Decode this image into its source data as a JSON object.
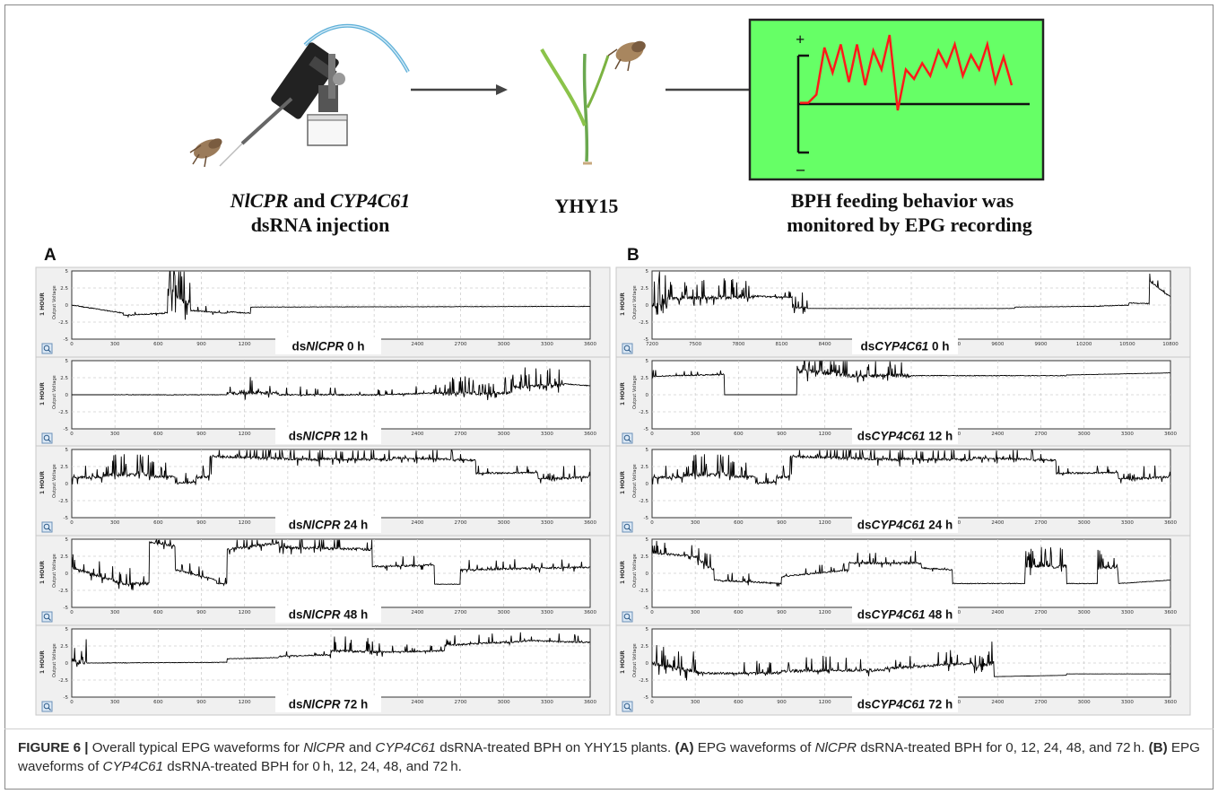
{
  "pipeline": {
    "step1_gene_1": "NlCPR",
    "step1_and": " and ",
    "step1_gene_2": "CYP4C61",
    "step1_line2": "dsRNA injection",
    "step2_label": "YHY15",
    "step3_line1": "BPH feeding behavior was",
    "step3_line2": "monitored by EPG recording",
    "monitor_plus": "+",
    "monitor_minus": "–",
    "monitor_bg": "#66ff66",
    "monitor_trace_color": "#ff1a1a",
    "monitor_trace": [
      0.02,
      0.02,
      0.15,
      0.9,
      0.5,
      0.95,
      0.35,
      0.95,
      0.3,
      0.85,
      0.55,
      1.1,
      -0.1,
      0.55,
      0.4,
      0.65,
      0.45,
      0.85,
      0.6,
      0.95,
      0.45,
      0.78,
      0.55,
      0.95,
      0.35,
      0.75,
      0.3
    ]
  },
  "panels": [
    {
      "letter": "A",
      "x_ticks": [
        "0",
        "300",
        "600",
        "900",
        "1200",
        "1500",
        "1800",
        "2100",
        "2400",
        "2700",
        "3000",
        "3300",
        "3600"
      ],
      "y_ticks": [
        "5",
        "2.5",
        "0",
        "-2.5",
        "-5"
      ],
      "side_label": "1 HOUR",
      "ylabel": "Output Voltage",
      "rows": [
        {
          "prefix": "ds",
          "gene": "NlCPR",
          "time": " 0 h",
          "seed": 11,
          "segments": [
            [
              0,
              0,
              -1.2,
              0.5
            ],
            [
              0.1,
              -1.5,
              -1.2,
              0.6
            ],
            [
              0.18,
              -1.1,
              -1.2,
              0.6
            ],
            [
              0.185,
              2.5,
              0,
              4.5
            ],
            [
              0.23,
              -0.8,
              -1.2,
              0.6
            ],
            [
              0.3,
              -1.0,
              -1.2,
              0.7
            ],
            [
              0.345,
              -0.3,
              -0.2,
              0.25
            ],
            [
              1.0,
              -0.35,
              -0.3,
              0.2
            ]
          ]
        },
        {
          "prefix": "ds",
          "gene": "NlCPR",
          "time": " 12 h",
          "seed": 23,
          "segments": [
            [
              0,
              0,
              0,
              0.05
            ],
            [
              0.08,
              0,
              0,
              0.4
            ],
            [
              0.3,
              0.2,
              0.3,
              1.6
            ],
            [
              0.4,
              0,
              0,
              0.8
            ],
            [
              0.6,
              0,
              0.3,
              0.8
            ],
            [
              0.72,
              0.2,
              0.3,
              1.8
            ],
            [
              0.78,
              0,
              0.4,
              1.5
            ],
            [
              0.85,
              1.2,
              1.4,
              1.8
            ],
            [
              0.95,
              1.6,
              1.3,
              0.5
            ],
            [
              1.0,
              1.3,
              1.3,
              0.2
            ]
          ]
        },
        {
          "prefix": "ds",
          "gene": "NlCPR",
          "time": " 24 h",
          "seed": 31,
          "segments": [
            [
              0,
              0.8,
              1.0,
              1.5
            ],
            [
              0.06,
              1.2,
              1.4,
              2.0
            ],
            [
              0.15,
              1.0,
              1.0,
              1.5
            ],
            [
              0.2,
              0,
              0.2,
              1.0
            ],
            [
              0.24,
              0.8,
              1.2,
              2.0
            ],
            [
              0.27,
              4.0,
              3.5,
              1.5
            ],
            [
              0.48,
              3.6,
              3.5,
              1.5
            ],
            [
              0.62,
              3.8,
              3.4,
              1.2
            ],
            [
              0.78,
              1.5,
              1.6,
              0.8
            ],
            [
              0.9,
              0.6,
              1.0,
              1.2
            ],
            [
              1.0,
              0.8,
              1.0,
              1.2
            ]
          ]
        },
        {
          "prefix": "ds",
          "gene": "NlCPR",
          "time": " 48 h",
          "seed": 43,
          "segments": [
            [
              0,
              0.8,
              -1.5,
              1.5
            ],
            [
              0.1,
              -1.5,
              -1.5,
              1.5
            ],
            [
              0.15,
              4.5,
              4.0,
              1.2
            ],
            [
              0.2,
              0.5,
              -1.0,
              1.0
            ],
            [
              0.28,
              -1.5,
              -1.5,
              0.6
            ],
            [
              0.3,
              3.5,
              4.5,
              1.5
            ],
            [
              0.4,
              3.8,
              3.5,
              1.5
            ],
            [
              0.58,
              1.0,
              1.2,
              1.0
            ],
            [
              0.7,
              -1.6,
              -1.6,
              0.3
            ],
            [
              0.75,
              0.5,
              0.9,
              1.0
            ],
            [
              1.0,
              0.5,
              0.4,
              0.5
            ]
          ]
        },
        {
          "prefix": "ds",
          "gene": "NlCPR",
          "time": " 72 h",
          "seed": 57,
          "segments": [
            [
              0,
              0.2,
              0.2,
              3.0
            ],
            [
              0.03,
              0,
              0.1,
              0.3
            ],
            [
              0.3,
              0.6,
              0.8,
              0.4
            ],
            [
              0.4,
              1.0,
              1.2,
              0.7
            ],
            [
              0.5,
              1.8,
              1.6,
              1.4
            ],
            [
              0.6,
              1.6,
              1.8,
              0.8
            ],
            [
              0.72,
              2.6,
              3.2,
              1.0
            ],
            [
              0.88,
              3.3,
              3.0,
              0.8
            ],
            [
              1.0,
              2.5,
              2.5,
              0.8
            ]
          ]
        }
      ]
    },
    {
      "letter": "B",
      "x_ticks_first": [
        "7200",
        "7500",
        "7800",
        "8100",
        "8400",
        "8700",
        "9000",
        "9300",
        "9600",
        "9900",
        "10200",
        "10500",
        "10800"
      ],
      "x_ticks": [
        "0",
        "300",
        "600",
        "900",
        "1200",
        "1500",
        "1800",
        "2100",
        "2400",
        "2700",
        "3000",
        "3300",
        "3600"
      ],
      "y_ticks": [
        "5",
        "2.5",
        "0",
        "-2.5",
        "-5"
      ],
      "side_label": "1 HOUR",
      "ylabel": "Output Voltage",
      "rows": [
        {
          "prefix": "ds",
          "gene": "CYP4C61",
          "time": " 0 h",
          "seed": 67,
          "segments": [
            [
              0,
              -0.2,
              0,
              4.0
            ],
            [
              0.03,
              1.0,
              1.2,
              2.0
            ],
            [
              0.2,
              1.3,
              1.1,
              0.8
            ],
            [
              0.27,
              -0.3,
              -0.4,
              1.5
            ],
            [
              0.3,
              -0.5,
              -0.5,
              0.1
            ],
            [
              0.7,
              -0.3,
              -0.2,
              0.2
            ],
            [
              0.85,
              -0.2,
              0,
              0.4
            ],
            [
              0.92,
              0.3,
              0.2,
              0.5
            ],
            [
              0.96,
              3.5,
              1.2,
              0.8
            ],
            [
              1.0,
              1.2,
              0.8,
              0.5
            ]
          ]
        },
        {
          "prefix": "ds",
          "gene": "CYP4C61",
          "time": " 12 h",
          "seed": 71,
          "segments": [
            [
              0,
              2.7,
              3.0,
              0.6
            ],
            [
              0.14,
              0,
              0,
              0.05
            ],
            [
              0.28,
              3.5,
              3.0,
              2.5
            ],
            [
              0.37,
              2.8,
              2.8,
              2.0
            ],
            [
              0.5,
              2.8,
              2.8,
              0.4
            ],
            [
              0.8,
              2.9,
              3.2,
              0.2
            ],
            [
              1.0,
              3.3,
              3.3,
              0.05
            ]
          ]
        },
        {
          "prefix": "ds",
          "gene": "CYP4C61",
          "time": " 24 h",
          "seed": 31,
          "segments": [
            [
              0,
              0.8,
              1.0,
              1.5
            ],
            [
              0.06,
              1.2,
              1.4,
              2.0
            ],
            [
              0.15,
              1.0,
              1.0,
              1.5
            ],
            [
              0.2,
              0,
              0.2,
              1.0
            ],
            [
              0.24,
              0.8,
              1.2,
              2.0
            ],
            [
              0.27,
              4.0,
              3.5,
              1.5
            ],
            [
              0.48,
              3.6,
              3.5,
              1.5
            ],
            [
              0.62,
              3.8,
              3.4,
              1.2
            ],
            [
              0.78,
              1.5,
              1.6,
              0.8
            ],
            [
              0.9,
              0.6,
              1.0,
              1.2
            ],
            [
              1.0,
              0.8,
              1.0,
              1.2
            ]
          ]
        },
        {
          "prefix": "ds",
          "gene": "CYP4C61",
          "time": " 48 h",
          "seed": 89,
          "segments": [
            [
              0,
              3.0,
              2.5,
              1.2
            ],
            [
              0.08,
              2.5,
              0.5,
              1.5
            ],
            [
              0.12,
              -1.0,
              -1.5,
              0.8
            ],
            [
              0.25,
              -0.5,
              0.5,
              0.8
            ],
            [
              0.38,
              1.5,
              1.5,
              1.2
            ],
            [
              0.52,
              0.8,
              0.5,
              0.8
            ],
            [
              0.58,
              -1.5,
              -1.5,
              0.4
            ],
            [
              0.72,
              1.0,
              1.0,
              2.0
            ],
            [
              0.8,
              -1.5,
              -1.5,
              0.4
            ],
            [
              0.86,
              0.8,
              1.0,
              2.0
            ],
            [
              0.9,
              -1.5,
              -1.0,
              0.3
            ],
            [
              1.0,
              -1.2,
              -1.0,
              0.3
            ]
          ]
        },
        {
          "prefix": "ds",
          "gene": "CYP4C61",
          "time": " 72 h",
          "seed": 97,
          "segments": [
            [
              0,
              0,
              -1.5,
              2.5
            ],
            [
              0.1,
              -1.5,
              -1.5,
              1.2
            ],
            [
              0.25,
              -1.2,
              -1.0,
              1.5
            ],
            [
              0.45,
              -0.8,
              0,
              1.5
            ],
            [
              0.62,
              -0.5,
              0,
              2.5
            ],
            [
              0.66,
              -2.0,
              -1.8,
              0.05
            ],
            [
              0.8,
              -1.6,
              -1.6,
              0.05
            ],
            [
              1.0,
              -1.8,
              -1.8,
              0.05
            ]
          ]
        }
      ]
    }
  ],
  "caption": {
    "fig_label": "FIGURE 6 |",
    "t1": " Overall typical EPG waveforms for ",
    "g1": "NlCPR",
    "t2": " and ",
    "g2": "CYP4C61",
    "t3": " dsRNA-treated BPH on YHY15 plants. ",
    "a_label": "(A)",
    "t4": " EPG waveforms of ",
    "g3": "NlCPR",
    "t5": " dsRNA-treated BPH for 0, 12, 24, 48, and 72 h. ",
    "b_label": "(B)",
    "t6": " EPG waveforms of ",
    "g4": "CYP4C61",
    "t7": " dsRNA-treated BPH for 0 h, 12, 24, 48, and 72 h."
  }
}
